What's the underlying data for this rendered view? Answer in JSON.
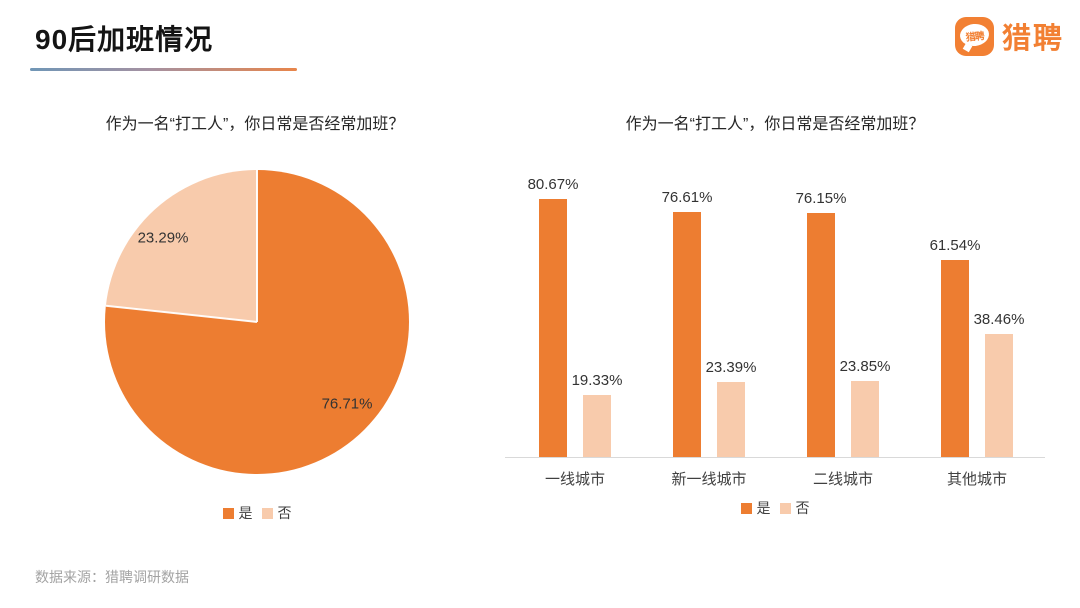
{
  "header": {
    "title": "90后加班情况"
  },
  "logo": {
    "text": "猎聘",
    "icon_text": "猎聘",
    "brand_color": "#F28033"
  },
  "footer": {
    "source": "数据来源：猎聘调研数据"
  },
  "chart_data": [
    {
      "type": "pie",
      "title": "作为一名“打工人”，你日常是否经常加班？",
      "legend_position": "bottom",
      "start_angle_deg": 0,
      "direction": "clockwise",
      "slices": [
        {
          "label": "是",
          "value": 76.71,
          "display": "76.71%",
          "color": "#ED7D31"
        },
        {
          "label": "否",
          "value": 23.29,
          "display": "23.29%",
          "color": "#F8CBAC"
        }
      ]
    },
    {
      "type": "bar",
      "title": "作为一名“打工人”，你日常是否经常加班？",
      "categories": [
        "一线城市",
        "新一线城市",
        "二线城市",
        "其他城市"
      ],
      "series": [
        {
          "name": "是",
          "color": "#ED7D31",
          "values": [
            80.67,
            76.61,
            76.15,
            61.54
          ],
          "displays": [
            "80.67%",
            "76.61%",
            "76.15%",
            "61.54%"
          ]
        },
        {
          "name": "否",
          "color": "#F8CBAC",
          "values": [
            19.33,
            23.39,
            23.85,
            38.46
          ],
          "displays": [
            "19.33%",
            "23.39%",
            "23.85%",
            "38.46%"
          ]
        }
      ],
      "ylim": [
        0,
        100
      ],
      "grid": false,
      "legend_position": "bottom"
    }
  ]
}
